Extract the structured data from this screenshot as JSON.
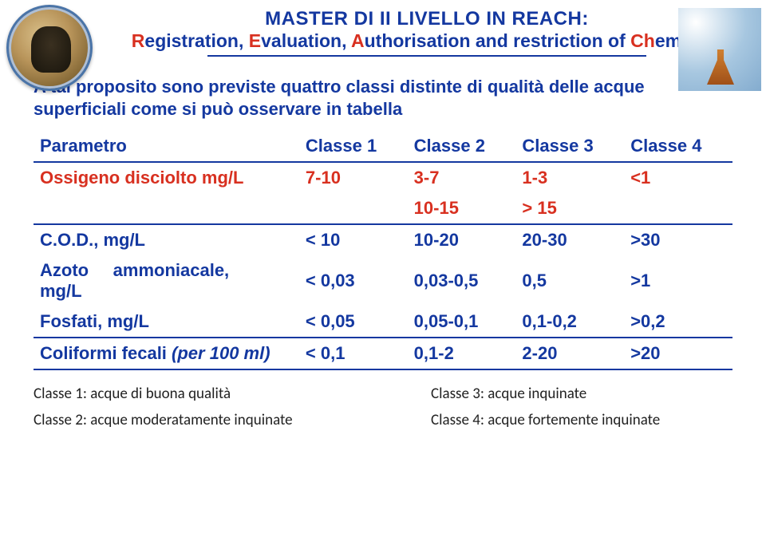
{
  "header": {
    "line1": "MASTER  DI II LIVELLO IN REACH:",
    "line2": {
      "r": "R",
      "t1": "egistration, ",
      "e": "E",
      "t2": "valuation, ",
      "a": "A",
      "t3": "uthorisation and restriction of ",
      "c": "Ch",
      "t4": "emicals"
    }
  },
  "intro": "A tal proposito sono previste quattro classi distinte di qualità delle acque superficiali come si può osservare in tabella",
  "table": {
    "headers": [
      "Parametro",
      "Classe 1",
      "Classe 2",
      "Classe 3",
      "Classe 4"
    ],
    "rows": [
      {
        "label": "Ossigeno disciolto mg/L",
        "color": "red",
        "vals": [
          "7-10",
          "3-7",
          "1-3",
          "<1"
        ]
      },
      {
        "label": "",
        "color": "red",
        "vals": [
          "",
          "10-15",
          "> 15",
          ""
        ]
      },
      {
        "label": "C.O.D., mg/L",
        "color": "blue",
        "vals": [
          "< 10",
          "10-20",
          "20-30",
          ">30"
        ]
      },
      {
        "label": "Azoto ammoniacale, mg/L",
        "color": "blue",
        "vals": [
          "< 0,03",
          "0,03-0,5",
          "0,5",
          ">1"
        ]
      },
      {
        "label": "Fosfati, mg/L",
        "color": "blue",
        "vals": [
          "< 0,05",
          "0,05-0,1",
          "0,1-0,2",
          ">0,2"
        ]
      },
      {
        "label": "Coliformi fecali (per 100 ml)",
        "color": "blue",
        "vals": [
          "< 0,1",
          "0,1-2",
          "2-20",
          ">20"
        ]
      }
    ]
  },
  "legend": {
    "left": [
      "Classe 1: acque di buona qualità",
      "Classe 2: acque moderatamente inquinate"
    ],
    "right": [
      "Classe 3: acque inquinate",
      "Classe 4: acque fortemente inquinate"
    ]
  },
  "colors": {
    "blue": "#1438a0",
    "red": "#d83020",
    "background": "#ffffff",
    "text": "#222222"
  },
  "typography": {
    "title_fontsize": 24,
    "body_fontsize": 22,
    "legend_fontsize": 19
  }
}
